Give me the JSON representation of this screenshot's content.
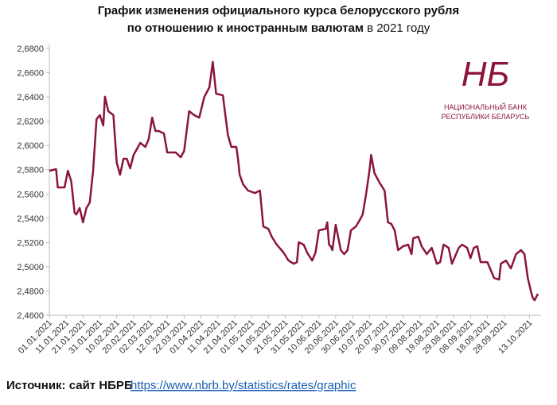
{
  "chart_data": {
    "type": "line",
    "title_line1": "График изменения официального курса белорусского рубля",
    "title_line2_bold": "по отношению к иностранным валютам",
    "title_line2_rest": " в 2021 году",
    "logo": {
      "line1": "НАЦИОНАЛЬНЫЙ БАНК",
      "line2": "РЕСПУБЛИКИ БЕЛАРУСЬ"
    },
    "source_label": "Источник: сайт НБРБ",
    "source_link": "https://www.nbrb.by/statistics/rates/graphic",
    "color": "#8b1538",
    "xlim": [
      "01.01.2021",
      "18.10.2021"
    ],
    "xticks": [
      "01.01.2021",
      "11.01.2021",
      "21.01.2021",
      "31.01.2021",
      "10.02.2021",
      "20.02.2021",
      "02.03.2021",
      "12.03.2021",
      "22.03.2021",
      "01.04.2021",
      "11.04.2021",
      "21.04.2021",
      "01.05.2021",
      "11.05.2021",
      "21.05.2021",
      "31.05.2021",
      "10.06.2021",
      "20.06.2021",
      "30.06.2021",
      "10.07.2021",
      "20.07.2021",
      "30.07.2021",
      "09.08.2021",
      "19.08.2021",
      "29.08.2021",
      "08.09.2021",
      "18.09.2021",
      "28.09.2021",
      "13.10.2021"
    ],
    "ylim": [
      2.46,
      2.68
    ],
    "yticks": [
      {
        "value": 2.46,
        "label": "2,4600"
      },
      {
        "value": 2.48,
        "label": "2,4800"
      },
      {
        "value": 2.5,
        "label": "2,5000"
      },
      {
        "value": 2.52,
        "label": "2,5200"
      },
      {
        "value": 2.54,
        "label": "2,5400"
      },
      {
        "value": 2.56,
        "label": "2,5600"
      },
      {
        "value": 2.58,
        "label": "2,5800"
      },
      {
        "value": 2.6,
        "label": "2,6000"
      },
      {
        "value": 2.62,
        "label": "2,6200"
      },
      {
        "value": 2.64,
        "label": "2,6400"
      },
      {
        "value": 2.66,
        "label": "2,6600"
      },
      {
        "value": 2.68,
        "label": "2,6800"
      }
    ],
    "x": [
      "01.01.2021",
      "05.01.2021",
      "06.01.2021",
      "10.01.2021",
      "12.01.2021",
      "14.01.2021",
      "16.01.2021",
      "17.01.2021",
      "19.01.2021",
      "21.01.2021",
      "23.01.2021",
      "25.01.2021",
      "27.01.2021",
      "29.01.2021",
      "31.01.2021",
      "02.02.2021",
      "03.02.2021",
      "05.02.2021",
      "08.02.2021",
      "10.02.2021",
      "12.02.2021",
      "14.02.2021",
      "16.02.2021",
      "18.02.2021",
      "20.02.2021",
      "24.02.2021",
      "27.02.2021",
      "01.03.2021",
      "03.03.2021",
      "05.03.2021",
      "07.03.2021",
      "10.03.2021",
      "12.03.2021",
      "17.03.2021",
      "20.03.2021",
      "22.03.2021",
      "25.03.2021",
      "28.03.2021",
      "31.03.2021",
      "03.04.2021",
      "06.04.2021",
      "08.04.2021",
      "10.04.2021",
      "14.04.2021",
      "17.04.2021",
      "19.04.2021",
      "22.04.2021",
      "23.04.2021",
      "24.04.2021",
      "26.04.2021",
      "29.04.2021",
      "03.05.2021",
      "06.05.2021",
      "08.05.2021",
      "11.05.2021",
      "13.05.2021",
      "16.05.2021",
      "20.05.2021",
      "23.05.2021",
      "26.05.2021",
      "28.05.2021",
      "29.05.2021",
      "01.06.2021",
      "03.06.2021",
      "06.06.2021",
      "08.06.2021",
      "10.06.2021",
      "14.06.2021",
      "15.06.2021",
      "16.06.2021",
      "17.06.2021",
      "18.06.2021",
      "20.06.2021",
      "23.06.2021",
      "25.06.2021",
      "27.06.2021",
      "29.06.2021",
      "02.07.2021",
      "04.07.2021",
      "06.07.2021",
      "08.07.2021",
      "10.07.2021",
      "11.07.2021",
      "13.07.2021",
      "16.07.2021",
      "19.07.2021",
      "21.07.2021",
      "23.07.2021",
      "25.07.2021",
      "27.07.2021",
      "30.07.2021",
      "02.08.2021",
      "04.08.2021",
      "05.08.2021",
      "08.08.2021",
      "10.08.2021",
      "13.08.2021",
      "16.08.2021",
      "19.08.2021",
      "21.08.2021",
      "23.08.2021",
      "26.08.2021",
      "28.08.2021",
      "01.09.2021",
      "03.09.2021",
      "06.09.2021",
      "08.09.2021",
      "10.09.2021",
      "12.09.2021",
      "14.09.2021",
      "18.09.2021",
      "20.09.2021",
      "22.09.2021",
      "25.09.2021",
      "26.09.2021",
      "29.09.2021",
      "02.10.2021",
      "05.10.2021",
      "08.10.2021",
      "10.10.2021",
      "12.10.2021",
      "14.10.2021",
      "15.10.2021",
      "16.10.2021",
      "18.10.2021"
    ],
    "values": [
      2.5791,
      2.5805,
      2.5654,
      2.5654,
      2.5791,
      2.5706,
      2.5444,
      2.5431,
      2.5484,
      2.5366,
      2.5484,
      2.553,
      2.5791,
      2.6217,
      2.625,
      2.6165,
      2.6401,
      2.6283,
      2.625,
      2.5857,
      2.5759,
      2.589,
      2.589,
      2.5811,
      2.5922,
      2.6021,
      2.5988,
      2.6053,
      2.623,
      2.6119,
      2.6119,
      2.6099,
      2.5942,
      2.5942,
      2.5903,
      2.5955,
      2.6283,
      2.625,
      2.623,
      2.6401,
      2.6479,
      2.6689,
      2.6427,
      2.6414,
      2.6086,
      2.5988,
      2.5988,
      2.589,
      2.5759,
      2.568,
      2.5628,
      2.5608,
      2.5628,
      2.5333,
      2.5313,
      2.5248,
      2.5182,
      2.5117,
      2.5051,
      2.5025,
      2.5038,
      2.5202,
      2.5182,
      2.5117,
      2.5051,
      2.5117,
      2.53,
      2.5313,
      2.5366,
      2.5182,
      2.5169,
      2.5137,
      2.5346,
      2.5137,
      2.5104,
      2.5137,
      2.53,
      2.5333,
      2.5379,
      2.5431,
      2.5595,
      2.5791,
      2.5922,
      2.5772,
      2.5693,
      2.5628,
      2.5366,
      2.5353,
      2.53,
      2.5137,
      2.5169,
      2.5182,
      2.5104,
      2.5235,
      2.5248,
      2.5169,
      2.5104,
      2.5156,
      2.5025,
      2.5038,
      2.5182,
      2.5156,
      2.5025,
      2.5156,
      2.5182,
      2.5156,
      2.5071,
      2.5156,
      2.5169,
      2.5038,
      2.5038,
      2.4973,
      2.4907,
      2.4894,
      2.5025,
      2.5051,
      2.4986,
      2.5104,
      2.5137,
      2.5104,
      2.4907,
      2.479,
      2.4744,
      2.4724,
      2.4776
    ]
  }
}
